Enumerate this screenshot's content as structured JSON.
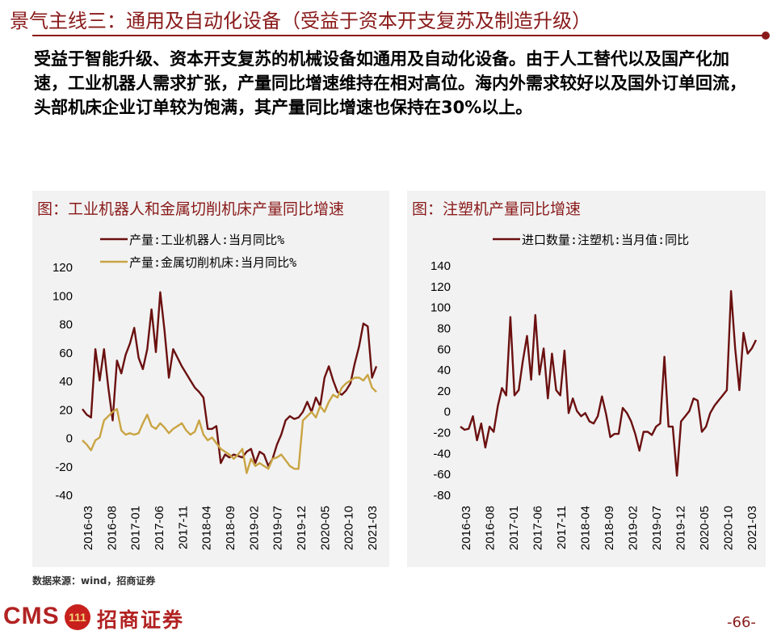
{
  "header": {
    "title": "景气主线三：通用及自动化设备（受益于资本开支复苏及制造升级）"
  },
  "body_text": "受益于智能升级、资本开支复苏的机械设备如通用及自动化设备。由于人工替代以及国产化加速，工业机器人需求扩张，产量同比增速维持在相对高位。海内外需求较好以及国外订单回流，头部机床企业订单较为饱满，其产量同比增速也保持在30%以上。",
  "footer": {
    "source": "数据来源：wind，招商证券",
    "logo_en": "CMS",
    "logo_badge": "111",
    "logo_cn": "招商证券",
    "page": "-66-"
  },
  "colors": {
    "accent": "#8a1a1a",
    "robot_line": "#6b1010",
    "machine_tool_line": "#c9a443",
    "injection_line": "#6b1010",
    "panel_bg": "#f2f2f2"
  },
  "chart_data": [
    {
      "type": "line",
      "title": "图：工业机器人和金属切削机床产量同比增速",
      "x_tick_labels": [
        "2016-03",
        "2016-08",
        "2017-01",
        "2017-06",
        "2017-11",
        "2018-04",
        "2018-09",
        "2019-02",
        "2019-07",
        "2019-12",
        "2020-05",
        "2020-10",
        "2021-03"
      ],
      "ylim": [
        -40,
        120
      ],
      "yticks": [
        -40,
        -20,
        0,
        20,
        40,
        60,
        80,
        100,
        120
      ],
      "legend_position": "top-left",
      "grid": false,
      "series": [
        {
          "name": "产量:工业机器人:当月同比%",
          "color": "#6b1010",
          "values": [
            20,
            16,
            14,
            62,
            40,
            62,
            35,
            12,
            54,
            45,
            58,
            66,
            77,
            56,
            48,
            62,
            90,
            60,
            102,
            75,
            42,
            62,
            56,
            50,
            45,
            40,
            35,
            32,
            28,
            6,
            6,
            8,
            -18,
            -12,
            -14,
            -12,
            -13,
            -14,
            -10,
            -8,
            -18,
            -10,
            -12,
            -20,
            -15,
            -5,
            2,
            12,
            15,
            13,
            14,
            18,
            25,
            18,
            28,
            22,
            42,
            50,
            40,
            32,
            30,
            33,
            38,
            52,
            64,
            80,
            78,
            42,
            50
          ]
        },
        {
          "name": "产量:金属切削机床:当月同比%",
          "color": "#c9a443",
          "values": [
            -2,
            -5,
            -9,
            -2,
            0,
            12,
            15,
            18,
            20,
            5,
            2,
            3,
            2,
            3,
            10,
            16,
            8,
            6,
            10,
            7,
            3,
            6,
            8,
            10,
            5,
            2,
            4,
            12,
            2,
            -2,
            0,
            -4,
            -8,
            -10,
            -12,
            -15,
            -12,
            -8,
            -25,
            -15,
            -20,
            -18,
            -20,
            -22,
            -15,
            -14,
            -12,
            -16,
            -20,
            -22,
            -22,
            12,
            15,
            18,
            14,
            22,
            18,
            25,
            30,
            28,
            35,
            38,
            40,
            42,
            42,
            40,
            44,
            35,
            32
          ]
        }
      ]
    },
    {
      "type": "line",
      "title": "图：注塑机产量同比增速",
      "x_tick_labels": [
        "2016-03",
        "2016-08",
        "2017-01",
        "2017-06",
        "2017-11",
        "2018-04",
        "2018-09",
        "2019-02",
        "2019-07",
        "2019-12",
        "2020-05",
        "2020-10",
        "2021-03"
      ],
      "ylim": [
        -80,
        140
      ],
      "yticks": [
        -80,
        -60,
        -40,
        -20,
        0,
        20,
        40,
        60,
        80,
        100,
        120,
        140
      ],
      "legend_position": "top",
      "grid": false,
      "series": [
        {
          "name": "进口数量:注塑机:当月值:同比",
          "color": "#6b1010",
          "values": [
            -15,
            -18,
            -17,
            -5,
            -28,
            -12,
            -35,
            -15,
            -20,
            5,
            22,
            15,
            90,
            15,
            20,
            48,
            72,
            30,
            92,
            35,
            60,
            12,
            55,
            20,
            15,
            58,
            -2,
            12,
            0,
            -5,
            -2,
            -10,
            -12,
            -5,
            14,
            -3,
            -25,
            -22,
            -22,
            3,
            -2,
            -10,
            -22,
            -38,
            -20,
            -20,
            -23,
            -15,
            -12,
            52,
            -15,
            -15,
            -62,
            -10,
            -5,
            0,
            12,
            10,
            -20,
            -15,
            -2,
            5,
            10,
            15,
            20,
            115,
            60,
            20,
            75,
            55,
            60,
            68
          ]
        }
      ]
    }
  ]
}
